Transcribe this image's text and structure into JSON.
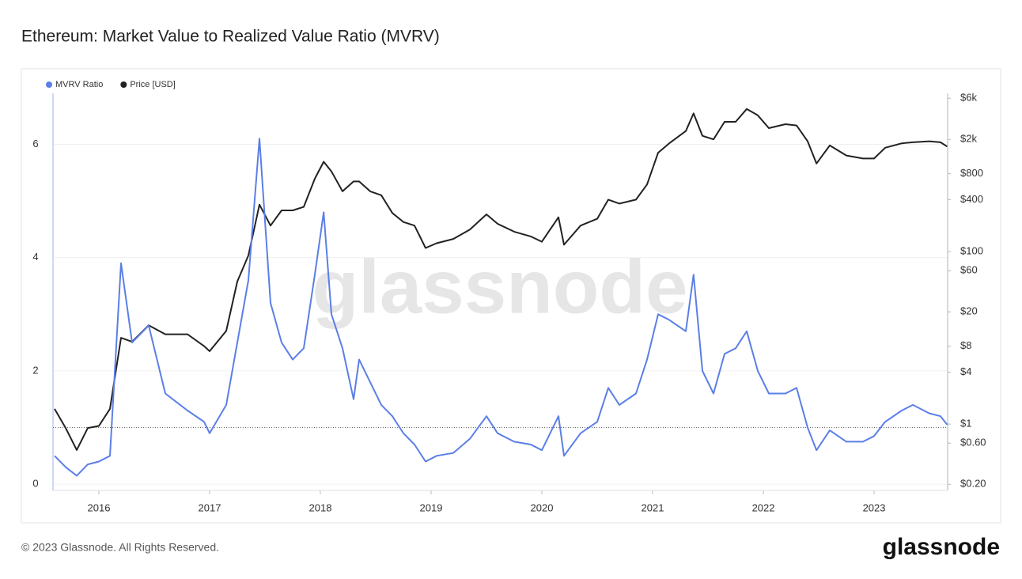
{
  "chart_data": {
    "type": "line",
    "title": "Ethereum: Market Value to Realized Value Ratio (MVRV)",
    "watermark": "glassnode",
    "footer": "© 2023 Glassnode. All Rights Reserved.",
    "logo": "glassnode",
    "x": [
      2015.6,
      2015.7,
      2015.8,
      2015.9,
      2016.0,
      2016.1,
      2016.2,
      2016.3,
      2016.45,
      2016.6,
      2016.8,
      2016.95,
      2017.0,
      2017.15,
      2017.25,
      2017.35,
      2017.45,
      2017.55,
      2017.65,
      2017.75,
      2017.85,
      2017.95,
      2018.03,
      2018.1,
      2018.2,
      2018.3,
      2018.35,
      2018.45,
      2018.55,
      2018.65,
      2018.75,
      2018.85,
      2018.95,
      2019.05,
      2019.2,
      2019.35,
      2019.5,
      2019.6,
      2019.75,
      2019.9,
      2020.0,
      2020.15,
      2020.2,
      2020.35,
      2020.5,
      2020.6,
      2020.7,
      2020.85,
      2020.95,
      2021.05,
      2021.15,
      2021.3,
      2021.37,
      2021.45,
      2021.55,
      2021.65,
      2021.75,
      2021.85,
      2021.95,
      2022.05,
      2022.2,
      2022.3,
      2022.4,
      2022.48,
      2022.6,
      2022.75,
      2022.9,
      2023.0,
      2023.1,
      2023.25,
      2023.35,
      2023.5,
      2023.6,
      2023.66
    ],
    "series": [
      {
        "name": "MVRV Ratio",
        "color": "#5b7fe6",
        "axis": "y",
        "values": [
          0.5,
          0.3,
          0.15,
          0.35,
          0.4,
          0.5,
          3.9,
          2.5,
          2.8,
          1.6,
          1.3,
          1.1,
          0.9,
          1.4,
          2.5,
          3.6,
          6.1,
          3.2,
          2.5,
          2.2,
          2.4,
          3.7,
          4.8,
          3.0,
          2.4,
          1.5,
          2.2,
          1.8,
          1.4,
          1.2,
          0.9,
          0.7,
          0.4,
          0.5,
          0.55,
          0.8,
          1.2,
          0.9,
          0.75,
          0.7,
          0.6,
          1.2,
          0.5,
          0.9,
          1.1,
          1.7,
          1.4,
          1.6,
          2.2,
          3.0,
          2.9,
          2.7,
          3.7,
          2.0,
          1.6,
          2.3,
          2.4,
          2.7,
          2.0,
          1.6,
          1.6,
          1.7,
          1.0,
          0.6,
          0.95,
          0.75,
          0.75,
          0.85,
          1.1,
          1.3,
          1.4,
          1.25,
          1.2,
          1.05
        ]
      },
      {
        "name": "Price [USD]",
        "color": "#222222",
        "axis": "y2",
        "values": [
          1.5,
          0.9,
          0.5,
          0.9,
          0.95,
          1.5,
          10,
          9,
          14,
          11,
          11,
          8,
          7,
          12,
          45,
          90,
          350,
          200,
          300,
          300,
          330,
          700,
          1100,
          850,
          500,
          650,
          650,
          500,
          450,
          280,
          220,
          200,
          110,
          125,
          140,
          180,
          270,
          210,
          170,
          150,
          130,
          250,
          120,
          200,
          240,
          400,
          360,
          400,
          600,
          1400,
          1800,
          2500,
          4000,
          2200,
          2000,
          3200,
          3200,
          4500,
          3800,
          2700,
          3000,
          2900,
          1900,
          1050,
          1700,
          1300,
          1200,
          1200,
          1600,
          1800,
          1850,
          1900,
          1850,
          1650
        ]
      }
    ],
    "hline": 1,
    "xlim": [
      2015.586,
      2023.664
    ],
    "xticks": [
      2016,
      2017,
      2018,
      2019,
      2020,
      2021,
      2022,
      2023
    ],
    "ylim": [
      -0.11,
      6.9
    ],
    "yticks": [
      0,
      2,
      4,
      6
    ],
    "y2lim": [
      0.17,
      6840
    ],
    "y2log": true,
    "y2ticks": [
      {
        "value": 0.2,
        "label": "$0.20"
      },
      {
        "value": 0.6,
        "label": "$0.60"
      },
      {
        "value": 1,
        "label": "$1"
      },
      {
        "value": 4,
        "label": "$4"
      },
      {
        "value": 8,
        "label": "$8"
      },
      {
        "value": 20,
        "label": "$20"
      },
      {
        "value": 60,
        "label": "$60"
      },
      {
        "value": 100,
        "label": "$100"
      },
      {
        "value": 400,
        "label": "$400"
      },
      {
        "value": 800,
        "label": "$800"
      },
      {
        "value": 2000,
        "label": "$2k"
      },
      {
        "value": 6000,
        "label": "$6k"
      }
    ],
    "grid": true
  }
}
